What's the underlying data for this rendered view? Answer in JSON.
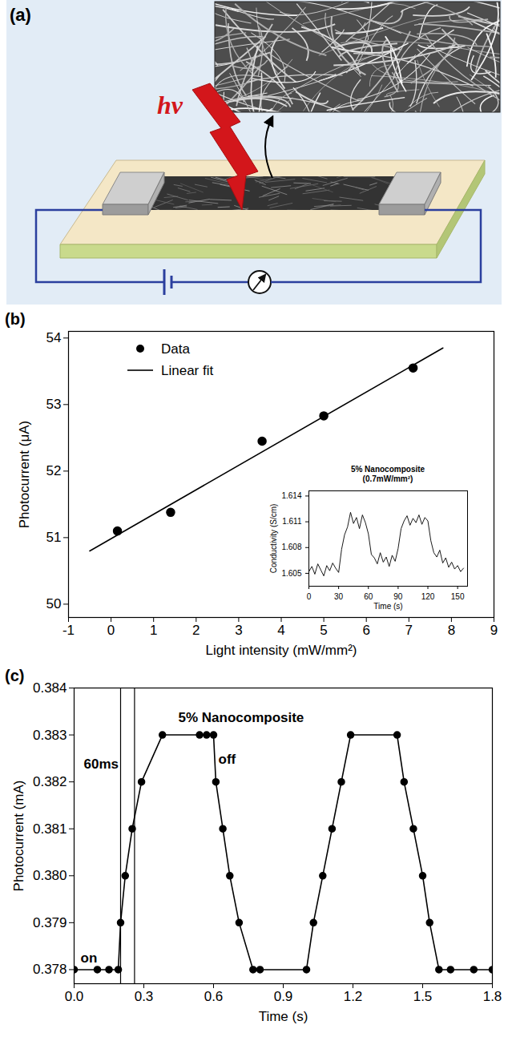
{
  "chart_data": [
    {
      "panel_label": "(b)",
      "type": "scatter",
      "x_label": "Light intensity (mW/mm²)",
      "y_label": "Photocurrent (μA)",
      "xlim": [
        -1,
        9
      ],
      "xticks": [
        -1,
        0,
        1,
        2,
        3,
        4,
        5,
        6,
        7,
        8,
        9
      ],
      "ylim": [
        49.8,
        54.1
      ],
      "yticks": [
        50,
        51,
        52,
        53,
        54
      ],
      "grid": false,
      "legend": "top-left",
      "series": [
        {
          "name": "Data",
          "type": "scatter",
          "marker": "circle",
          "color": "#000000",
          "x": [
            0.15,
            1.4,
            3.55,
            5.0,
            7.1
          ],
          "values": [
            51.1,
            51.38,
            52.45,
            52.83,
            53.55
          ]
        },
        {
          "name": "Linear fit",
          "type": "line",
          "line_style": "solid",
          "color": "#000000",
          "x": [
            -0.5,
            7.8
          ],
          "values": [
            50.8,
            53.85
          ]
        }
      ],
      "inset": {
        "type": "line",
        "title": "5% Nanocomposite",
        "subtitle": "(0.7mW/mm²)",
        "x_label": "Time (s)",
        "y_label": "Conductivity (S/cm)",
        "xlim": [
          0,
          160
        ],
        "xticks": [
          0,
          30,
          60,
          90,
          120,
          150
        ],
        "ylim": [
          1.6035,
          1.6146
        ],
        "yticks": [
          1.605,
          1.608,
          1.611,
          1.614
        ],
        "color": "#000000",
        "x": [
          0,
          3,
          6,
          9,
          12,
          15,
          18,
          21,
          24,
          27,
          30,
          33,
          36,
          39,
          42,
          45,
          48,
          51,
          54,
          57,
          60,
          63,
          66,
          69,
          72,
          75,
          78,
          81,
          84,
          87,
          90,
          93,
          96,
          99,
          102,
          105,
          108,
          111,
          114,
          117,
          120,
          123,
          126,
          129,
          132,
          135,
          138,
          141,
          144,
          147,
          150,
          153,
          156
        ],
        "values": [
          1.6052,
          1.6058,
          1.6049,
          1.6061,
          1.6054,
          1.6047,
          1.6059,
          1.6053,
          1.6062,
          1.6056,
          1.6051,
          1.6078,
          1.6095,
          1.6104,
          1.6121,
          1.6108,
          1.6115,
          1.6102,
          1.6118,
          1.6109,
          1.6096,
          1.6072,
          1.6068,
          1.6061,
          1.6074,
          1.6063,
          1.6069,
          1.6058,
          1.6071,
          1.6064,
          1.6079,
          1.6102,
          1.6111,
          1.6117,
          1.6106,
          1.6114,
          1.6109,
          1.6118,
          1.6107,
          1.6115,
          1.6111,
          1.6088,
          1.6074,
          1.6069,
          1.6077,
          1.6062,
          1.6068,
          1.6057,
          1.6063,
          1.6055,
          1.6059,
          1.6052,
          1.6056
        ]
      }
    },
    {
      "panel_label": "(c)",
      "type": "line",
      "marker": "circle",
      "line_style": "solid",
      "color": "#000000",
      "x_label": "Time (s)",
      "y_label": "Photocurrent (mA)",
      "xlim": [
        0,
        1.8
      ],
      "xticks": [
        {
          "value": 0,
          "label": "0.0"
        },
        0.3,
        0.6,
        0.9,
        1.2,
        1.5,
        1.8
      ],
      "ylim": [
        0.3777,
        0.384
      ],
      "yticks": [
        0.378,
        0.379,
        {
          "value": 0.38,
          "label": "0.380"
        },
        0.381,
        0.382,
        0.383,
        0.384
      ],
      "grid": false,
      "annotations": [
        "5% Nanocomposite",
        "60ms",
        "on",
        "off"
      ],
      "vlines": [
        0.2,
        0.26
      ],
      "x": [
        0,
        0.1,
        0.15,
        0.19,
        0.2,
        0.22,
        0.25,
        0.29,
        0.38,
        0.54,
        0.57,
        0.6,
        0.61,
        0.64,
        0.67,
        0.71,
        0.77,
        0.8,
        1.0,
        1.03,
        1.07,
        1.11,
        1.15,
        1.19,
        1.39,
        1.42,
        1.46,
        1.5,
        1.53,
        1.57,
        1.62,
        1.72,
        1.8
      ],
      "values": [
        0.378,
        0.378,
        0.378,
        0.378,
        0.379,
        0.38,
        0.381,
        0.382,
        0.383,
        0.383,
        0.383,
        0.383,
        0.382,
        0.381,
        0.38,
        0.379,
        0.378,
        0.378,
        0.378,
        0.379,
        0.38,
        0.381,
        0.382,
        0.383,
        0.383,
        0.382,
        0.381,
        0.38,
        0.379,
        0.378,
        0.378,
        0.378,
        0.378
      ]
    }
  ],
  "diagram": {
    "panel_label": "(a)",
    "annotation": "hv"
  }
}
